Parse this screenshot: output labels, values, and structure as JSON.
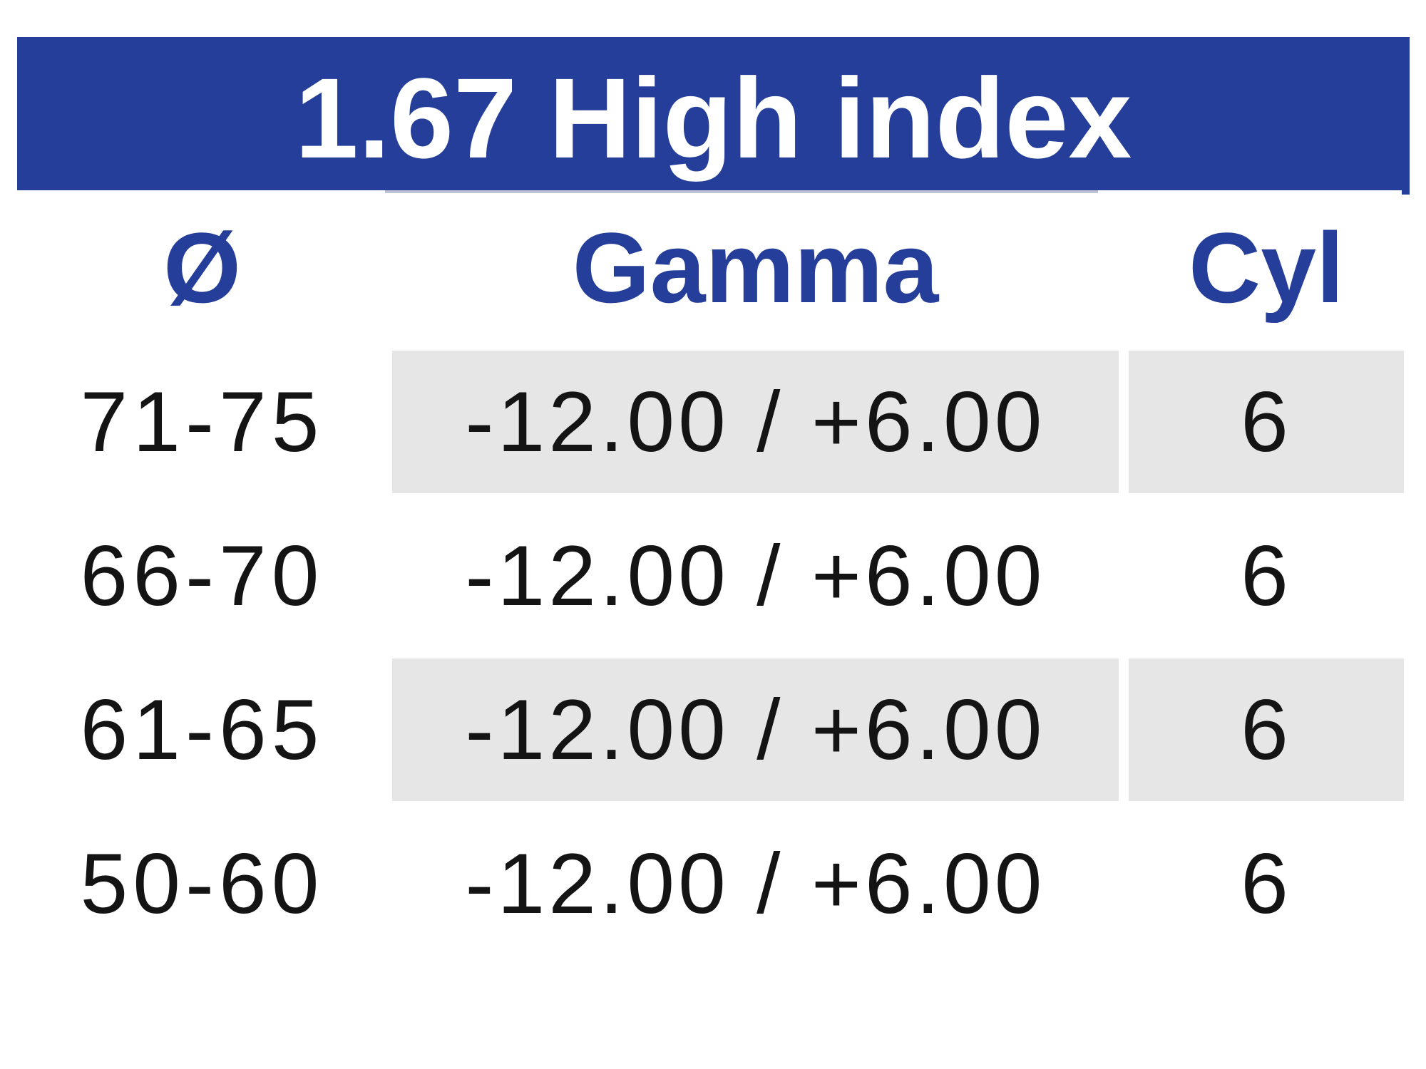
{
  "table": {
    "title": "1.67 High index",
    "columns": [
      {
        "key": "diameter",
        "label": "Ø"
      },
      {
        "key": "gamma",
        "label": "Gamma"
      },
      {
        "key": "cyl",
        "label": "Cyl"
      }
    ],
    "rows": [
      {
        "diameter": "71-75",
        "gamma": "-12.00 / +6.00",
        "cyl": "6",
        "shaded": true
      },
      {
        "diameter": "66-70",
        "gamma": "-12.00 / +6.00",
        "cyl": "6",
        "shaded": false
      },
      {
        "diameter": "61-65",
        "gamma": "-12.00 / +6.00",
        "cyl": "6",
        "shaded": true
      },
      {
        "diameter": "50-60",
        "gamma": "-12.00 / +6.00",
        "cyl": "6",
        "shaded": false
      }
    ],
    "colors": {
      "header_bg": "#243e9a",
      "header_text": "#ffffff",
      "column_header_text": "#243e9a",
      "shaded_cell_bg": "#e6e6e6",
      "body_text": "#141414"
    }
  }
}
